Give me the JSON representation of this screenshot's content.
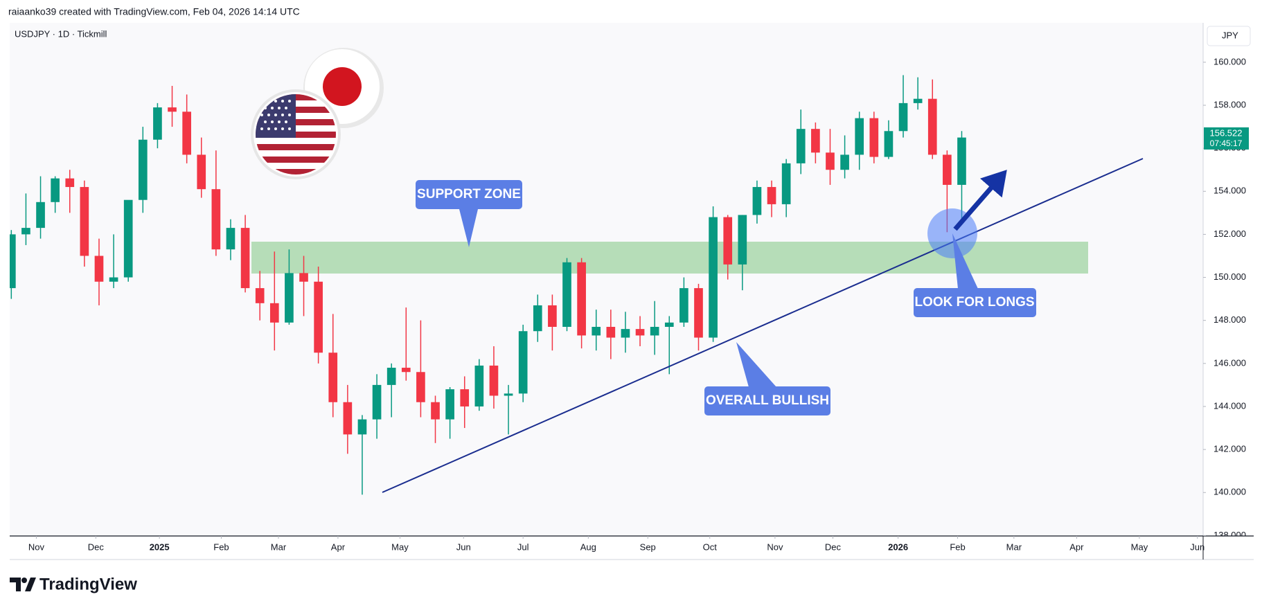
{
  "header": {
    "attribution": "raiaanko39 created with TradingView.com, Feb 04, 2026 14:14 UTC",
    "logo": "TradingView"
  },
  "chart_data": {
    "type": "candlestick",
    "symbol": "USDJPY · 1D · Tickmill",
    "currency": "JPY",
    "up_color": "#089981",
    "down_color": "#f23645",
    "open": [
      149.5,
      152.0,
      152.3,
      153.5,
      154.6,
      154.2,
      151.0,
      149.8,
      150.0,
      153.6,
      156.4,
      157.9,
      157.7,
      155.7,
      154.1,
      151.3,
      152.3,
      149.5,
      148.8,
      147.9,
      150.2,
      149.8,
      146.5,
      144.2,
      142.7,
      143.4,
      145.0,
      145.8,
      145.6,
      144.2,
      143.4,
      144.8,
      144.0,
      145.9,
      144.5,
      144.6,
      147.5,
      148.7,
      147.7,
      150.7,
      147.3,
      147.7,
      147.2,
      147.6,
      147.3,
      147.7,
      147.9,
      149.5,
      147.2,
      152.8,
      150.6,
      152.9,
      154.2,
      153.4,
      155.3,
      156.9,
      155.8,
      155.0,
      155.7,
      157.4,
      155.6,
      156.8,
      158.1,
      158.3,
      155.7,
      154.3
    ],
    "high": [
      152.2,
      153.9,
      154.7,
      154.7,
      155.0,
      154.5,
      151.8,
      152.0,
      153.5,
      157.0,
      158.1,
      158.9,
      158.5,
      156.5,
      155.9,
      152.7,
      152.9,
      150.3,
      151.2,
      151.3,
      151.0,
      150.5,
      148.3,
      145.0,
      143.6,
      145.5,
      146.0,
      148.6,
      148.0,
      144.5,
      144.9,
      145.4,
      146.2,
      146.8,
      145.0,
      147.8,
      149.2,
      149.2,
      150.9,
      150.9,
      148.5,
      148.5,
      148.4,
      148.2,
      148.9,
      148.2,
      150.0,
      149.7,
      153.3,
      152.9,
      152.9,
      154.5,
      154.5,
      155.5,
      157.8,
      157.2,
      156.9,
      156.6,
      157.7,
      157.7,
      157.3,
      159.4,
      159.3,
      159.2,
      155.9,
      156.8
    ],
    "low": [
      149.0,
      151.5,
      151.8,
      153.0,
      153.0,
      150.5,
      148.7,
      149.5,
      149.8,
      153.0,
      156.0,
      157.0,
      155.3,
      153.7,
      151.0,
      150.8,
      149.3,
      148.0,
      146.6,
      147.8,
      148.2,
      146.0,
      143.5,
      141.8,
      139.9,
      142.5,
      143.5,
      145.2,
      143.5,
      142.3,
      142.5,
      143.0,
      143.8,
      143.9,
      142.7,
      144.2,
      147.0,
      146.6,
      147.5,
      146.7,
      146.6,
      146.2,
      146.5,
      146.8,
      146.4,
      145.5,
      147.7,
      146.6,
      147.0,
      149.9,
      149.4,
      152.5,
      152.8,
      152.8,
      154.8,
      155.3,
      154.3,
      154.6,
      155.0,
      155.3,
      155.5,
      156.5,
      157.8,
      155.5,
      152.1,
      152.5
    ],
    "close": [
      152.0,
      152.3,
      153.5,
      154.6,
      154.2,
      151.0,
      149.8,
      150.0,
      153.6,
      156.4,
      157.9,
      157.7,
      155.7,
      154.1,
      151.3,
      152.3,
      149.5,
      148.8,
      147.9,
      150.2,
      149.8,
      146.5,
      144.2,
      142.7,
      143.4,
      145.0,
      145.8,
      145.6,
      144.2,
      143.4,
      144.8,
      144.0,
      145.9,
      144.5,
      144.6,
      147.5,
      148.7,
      147.7,
      150.7,
      147.3,
      147.7,
      147.2,
      147.6,
      147.3,
      147.7,
      147.9,
      149.5,
      147.2,
      152.8,
      150.6,
      152.9,
      154.2,
      153.4,
      155.3,
      156.9,
      155.8,
      155.0,
      155.7,
      157.4,
      155.6,
      156.8,
      158.1,
      158.3,
      155.7,
      154.3,
      156.5
    ],
    "last_price": 156.522,
    "countdown": "07:45:17",
    "xlim": [
      -0.11,
      81.51
    ],
    "xticks": [
      {
        "value": 1.71,
        "label": "Nov"
      },
      {
        "value": 5.78,
        "label": "Dec"
      },
      {
        "value": 10.13,
        "label": "2025"
      },
      {
        "value": 14.36,
        "label": "Feb"
      },
      {
        "value": 18.27,
        "label": "Mar"
      },
      {
        "value": 22.34,
        "label": "Apr"
      },
      {
        "value": 26.58,
        "label": "May"
      },
      {
        "value": 30.93,
        "label": "Jun"
      },
      {
        "value": 35.0,
        "label": "Jul"
      },
      {
        "value": 39.46,
        "label": "Aug"
      },
      {
        "value": 43.53,
        "label": "Sep"
      },
      {
        "value": 47.77,
        "label": "Oct"
      },
      {
        "value": 52.23,
        "label": "Nov"
      },
      {
        "value": 56.19,
        "label": "Dec"
      },
      {
        "value": 60.65,
        "label": "2026"
      },
      {
        "value": 64.72,
        "label": "Feb"
      },
      {
        "value": 68.57,
        "label": "Mar"
      },
      {
        "value": 72.86,
        "label": "Apr"
      },
      {
        "value": 77.15,
        "label": "May"
      },
      {
        "value": 81.12,
        "label": "Jun"
      }
    ],
    "ylim": [
      137.98,
      161.83
    ],
    "yticks": [
      {
        "value": 138,
        "label": "138.000"
      },
      {
        "value": 140,
        "label": "140.000"
      },
      {
        "value": 142,
        "label": "142.000"
      },
      {
        "value": 144,
        "label": "144.000"
      },
      {
        "value": 146,
        "label": "146.000"
      },
      {
        "value": 148,
        "label": "148.000"
      },
      {
        "value": 150,
        "label": "150.000"
      },
      {
        "value": 152,
        "label": "152.000"
      },
      {
        "value": 154,
        "label": "154.000"
      },
      {
        "value": 156,
        "label": "156.000"
      },
      {
        "value": 158,
        "label": "158.000"
      },
      {
        "value": 160,
        "label": "160.000"
      }
    ],
    "annotations": {
      "support": "SUPPORT ZONE",
      "longs": "LOOK FOR LONGS",
      "bullish": "OVERALL BULLISH"
    }
  }
}
